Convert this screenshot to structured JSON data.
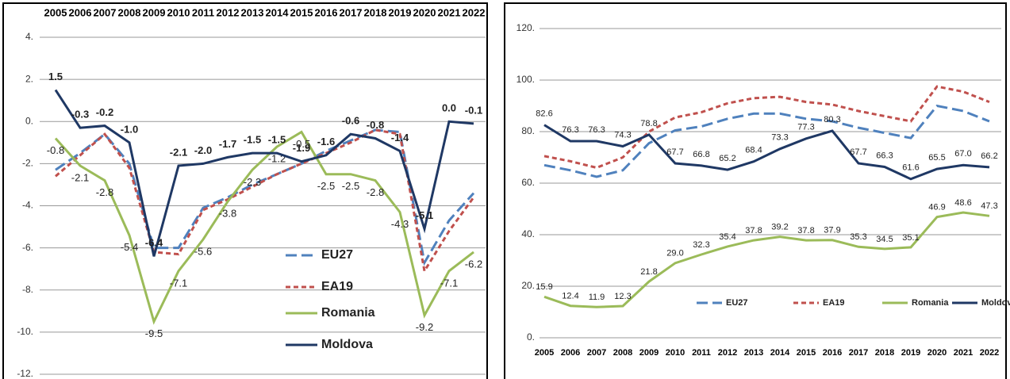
{
  "chart_data": [
    {
      "type": "line",
      "categories": [
        "2005",
        "2006",
        "2007",
        "2008",
        "2009",
        "2010",
        "2011",
        "2012",
        "2013",
        "2014",
        "2015",
        "2016",
        "2017",
        "2018",
        "2019",
        "2020",
        "2021",
        "2022"
      ],
      "ylim": [
        -12,
        4
      ],
      "yticks": [
        {
          "value": -12,
          "label": "-12."
        },
        {
          "value": -10,
          "label": "-10."
        },
        {
          "value": -8,
          "label": "-8."
        },
        {
          "value": -6,
          "label": "-6."
        },
        {
          "value": -4,
          "label": "-4."
        },
        {
          "value": -2,
          "label": "-2."
        },
        {
          "value": 0,
          "label": "0."
        },
        {
          "value": 2,
          "label": "2."
        },
        {
          "value": 4,
          "label": "4."
        }
      ],
      "grid": true,
      "series": [
        {
          "name": "EU27",
          "color": "#4f81bd",
          "values": [
            -2.3,
            -1.5,
            -0.6,
            -2.0,
            -6.0,
            -6.0,
            -4.1,
            -3.6,
            -3.0,
            -2.5,
            -2.0,
            -1.4,
            -0.9,
            -0.4,
            -0.5,
            -6.7,
            -4.7,
            -3.4
          ]
        },
        {
          "name": "EA19",
          "color": "#c0504d",
          "values": [
            -2.6,
            -1.6,
            -0.6,
            -2.2,
            -6.2,
            -6.3,
            -4.2,
            -3.7,
            -3.1,
            -2.5,
            -2.0,
            -1.5,
            -1.0,
            -0.4,
            -0.6,
            -7.1,
            -5.2,
            -3.6
          ]
        },
        {
          "name": "Romania",
          "color": "#9bbb59",
          "values": [
            -0.8,
            -2.1,
            -2.8,
            -5.4,
            -9.5,
            -7.1,
            -5.6,
            -3.8,
            -2.3,
            -1.2,
            -0.5,
            -2.5,
            -2.5,
            -2.8,
            -4.3,
            -9.2,
            -7.1,
            -6.2
          ],
          "value_labels": [
            "-0.8",
            "-2.1",
            "-2.8",
            "-5.4",
            "-9.5",
            "-7.1",
            "-5.6",
            "-3.8",
            "-2.3",
            "-1.2",
            "-0.5",
            "-2.5",
            "-2.5",
            "-2.8",
            "-4.3",
            "-9.2",
            "-7.1",
            "-6.2"
          ]
        },
        {
          "name": "Moldova",
          "color": "#1f3864",
          "values": [
            1.5,
            -0.3,
            -0.2,
            -1.0,
            -6.4,
            -2.1,
            -2.0,
            -1.7,
            -1.5,
            -1.5,
            -1.9,
            -1.6,
            -0.6,
            -0.8,
            -1.4,
            -5.1,
            0.0,
            -0.1
          ],
          "value_labels": [
            "1.5",
            "-0.3",
            "-0.2",
            "-1.0",
            "-6.4",
            "-2.1",
            "-2.0",
            "-1.7",
            "-1.5",
            "-1.5",
            "-1.9",
            "-1.6",
            "-0.6",
            "-0.8",
            "-1.4",
            "-5.1",
            "0.0",
            "-0.1"
          ]
        }
      ]
    },
    {
      "type": "line",
      "categories": [
        "2005",
        "2006",
        "2007",
        "2008",
        "2009",
        "2010",
        "2011",
        "2012",
        "2013",
        "2014",
        "2015",
        "2016",
        "2017",
        "2018",
        "2019",
        "2020",
        "2021",
        "2022"
      ],
      "ylim": [
        0,
        120
      ],
      "yticks": [
        {
          "value": 0,
          "label": "0."
        },
        {
          "value": 20,
          "label": "20."
        },
        {
          "value": 40,
          "label": "40."
        },
        {
          "value": 60,
          "label": "60."
        },
        {
          "value": 80,
          "label": "80."
        },
        {
          "value": 100,
          "label": "100."
        },
        {
          "value": 120,
          "label": "120."
        }
      ],
      "grid": true,
      "series": [
        {
          "name": "EU27",
          "color": "#4f81bd",
          "values": [
            67,
            65,
            62.5,
            65,
            75.5,
            80.5,
            82,
            85,
            87,
            87,
            85,
            84,
            81.5,
            79.5,
            77.5,
            90,
            88,
            84
          ]
        },
        {
          "name": "EA19",
          "color": "#c0504d",
          "values": [
            70.5,
            68.5,
            66,
            70,
            80,
            85.5,
            87.5,
            91,
            93,
            93.5,
            91.5,
            90.5,
            88,
            86,
            84,
            97.5,
            95.5,
            91.5
          ]
        },
        {
          "name": "Romania",
          "color": "#9bbb59",
          "values": [
            15.9,
            12.4,
            11.9,
            12.3,
            21.8,
            29.0,
            32.3,
            35.4,
            37.8,
            39.2,
            37.8,
            37.9,
            35.3,
            34.5,
            35.1,
            46.9,
            48.6,
            47.3
          ],
          "value_labels": [
            "15.9",
            "12.4",
            "11.9",
            "12.3",
            "21.8",
            "29.0",
            "32.3",
            "35.4",
            "37.8",
            "39.2",
            "37.8",
            "37.9",
            "35.3",
            "34.5",
            "35.1",
            "46.9",
            "48.6",
            "47.3"
          ]
        },
        {
          "name": "Moldova",
          "color": "#1f3864",
          "values": [
            82.6,
            76.3,
            76.3,
            74.3,
            78.8,
            67.7,
            66.8,
            65.2,
            68.4,
            73.3,
            77.3,
            80.3,
            67.7,
            66.3,
            61.6,
            65.5,
            67.0,
            66.2
          ],
          "value_labels": [
            "82.6",
            "76.3",
            "76.3",
            "74.3",
            "78.8",
            "67.7",
            "66.8",
            "65.2",
            "68.4",
            "73.3",
            "77.3",
            "80.3",
            "67.7",
            "66.3",
            "61.6",
            "65.5",
            "67.0",
            "66.2"
          ]
        }
      ]
    }
  ]
}
